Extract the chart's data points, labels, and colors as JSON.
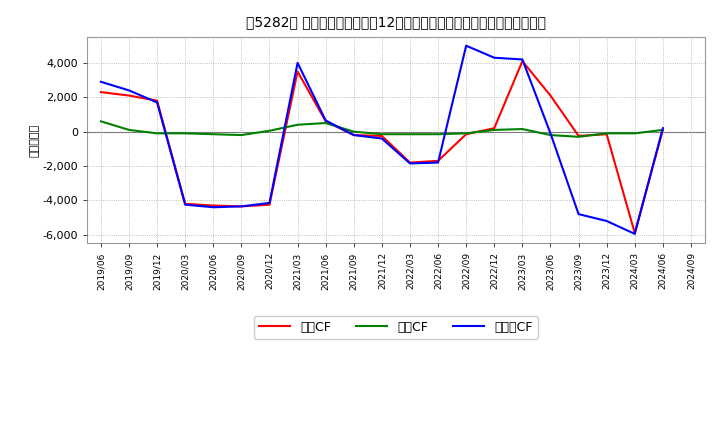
{
  "title": "［5282］ キャッシュフローの12か月移動合計の対前年同期増減額の推移",
  "ylabel": "（百万円）",
  "background_color": "#ffffff",
  "plot_bg_color": "#ffffff",
  "grid_color": "#aaaaaa",
  "dates": [
    "2019/06",
    "2019/09",
    "2019/12",
    "2020/03",
    "2020/06",
    "2020/09",
    "2020/12",
    "2021/03",
    "2021/06",
    "2021/09",
    "2021/12",
    "2022/03",
    "2022/06",
    "2022/09",
    "2022/12",
    "2023/03",
    "2023/06",
    "2023/09",
    "2023/12",
    "2024/03",
    "2024/06",
    "2024/09"
  ],
  "eigyo_cf": [
    2300,
    2100,
    1800,
    -4200,
    -4300,
    -4350,
    -4250,
    3500,
    600,
    -200,
    -250,
    -1800,
    -1700,
    -150,
    200,
    4100,
    2100,
    -250,
    -150,
    -5900,
    100,
    null
  ],
  "toshi_cf": [
    600,
    100,
    -100,
    -100,
    -150,
    -200,
    50,
    400,
    500,
    0,
    -150,
    -150,
    -150,
    -100,
    100,
    150,
    -200,
    -300,
    -100,
    -100,
    100,
    null
  ],
  "free_cf": [
    2900,
    2400,
    1700,
    -4250,
    -4400,
    -4350,
    -4150,
    4000,
    650,
    -200,
    -400,
    -1850,
    -1800,
    5000,
    4300,
    4200,
    -100,
    -4800,
    -5200,
    -5950,
    200,
    null
  ],
  "ylim": [
    -6500,
    5500
  ],
  "yticks": [
    -6000,
    -4000,
    -2000,
    0,
    2000,
    4000
  ],
  "eigyo_color": "#ff0000",
  "toshi_color": "#008000",
  "free_color": "#0000ff",
  "line_width": 1.5,
  "legend_labels": [
    "営業CF",
    "投資CF",
    "フリーCF"
  ]
}
